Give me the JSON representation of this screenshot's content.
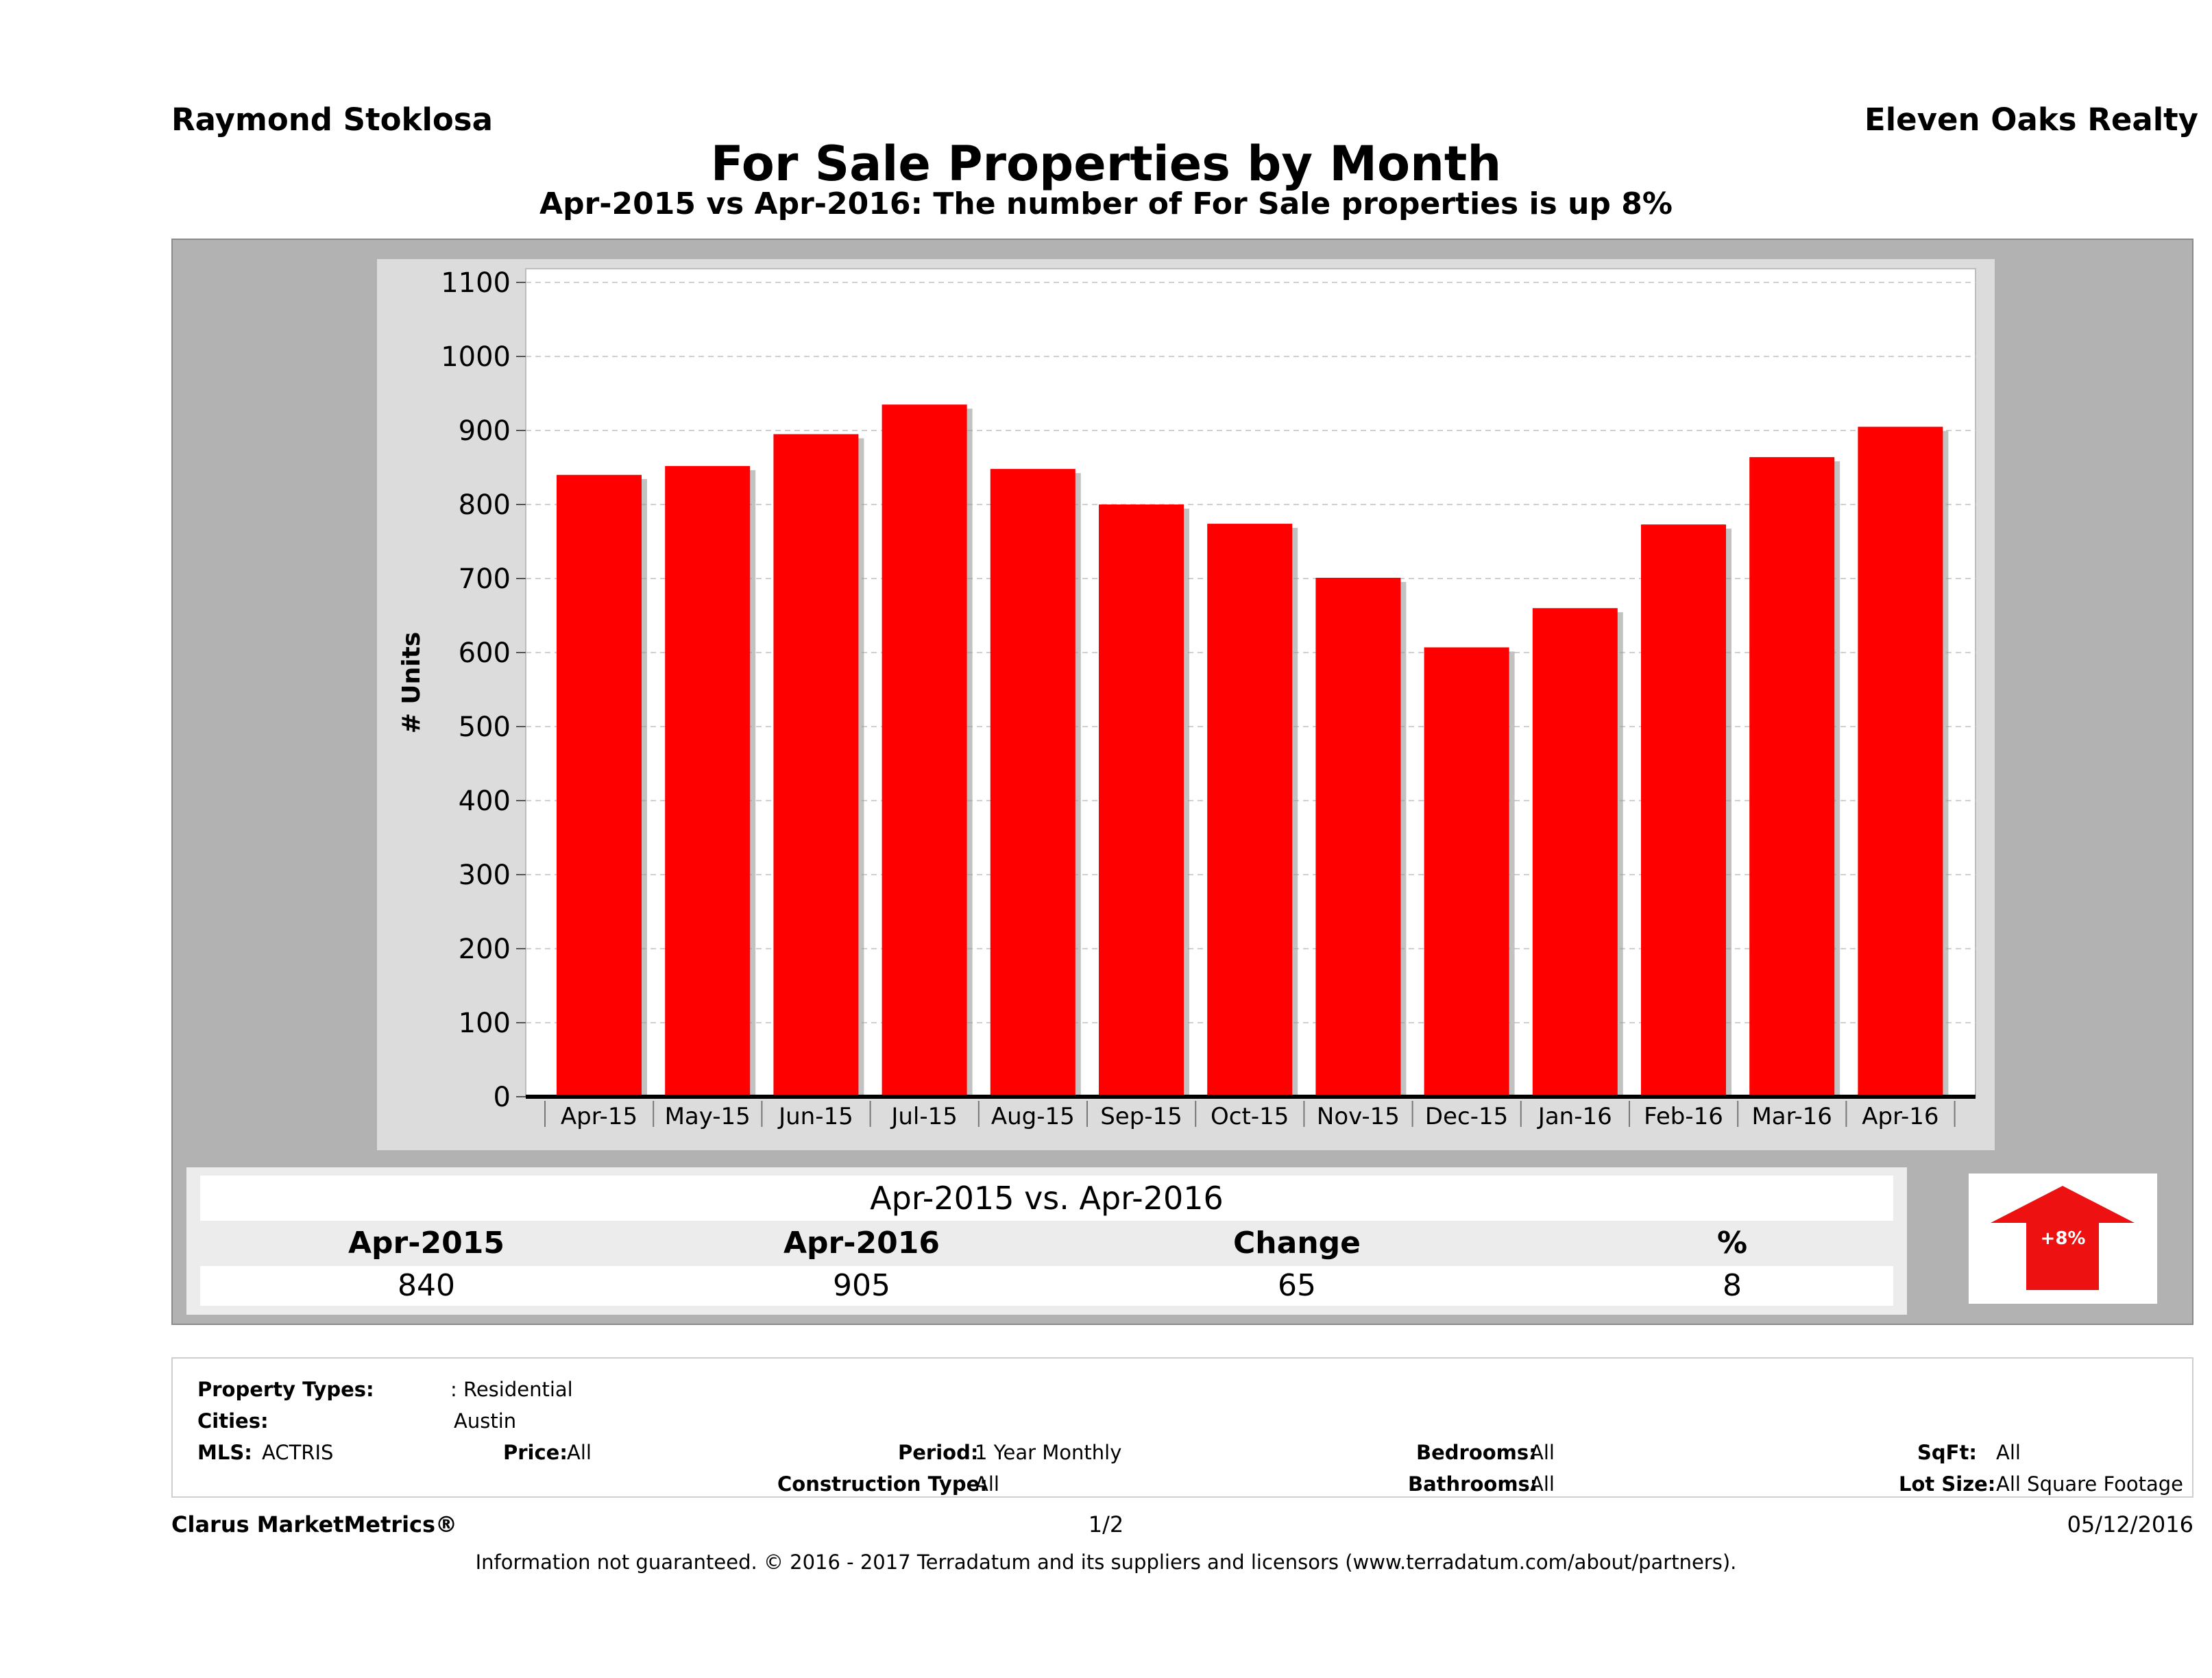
{
  "header": {
    "agent_name": "Raymond Stoklosa",
    "company": "Eleven Oaks Realty",
    "title": "For Sale Properties by Month",
    "subtitle": "Apr-2015 vs Apr-2016: The number of For Sale  properties is up 8%"
  },
  "chart_data": {
    "type": "bar",
    "categories": [
      "Apr-15",
      "May-15",
      "Jun-15",
      "Jul-15",
      "Aug-15",
      "Sep-15",
      "Oct-15",
      "Nov-15",
      "Dec-15",
      "Jan-16",
      "Feb-16",
      "Mar-16",
      "Apr-16"
    ],
    "values": [
      840,
      852,
      895,
      935,
      848,
      800,
      774,
      701,
      607,
      660,
      773,
      864,
      905
    ],
    "ylabel": "# Units",
    "ylim": [
      0,
      1100
    ],
    "yticks": [
      0,
      100,
      200,
      300,
      400,
      500,
      600,
      700,
      800,
      900,
      1000,
      1100
    ],
    "grid": true,
    "bar_color": "#ff0000"
  },
  "summary": {
    "title": "Apr-2015 vs. Apr-2016",
    "headers": [
      "Apr-2015",
      "Apr-2016",
      "Change",
      "%"
    ],
    "values": [
      "840",
      "905",
      "65",
      "8"
    ],
    "badge": "+8%",
    "badge_color": "#ee1111"
  },
  "filters": {
    "property_types_label": "Property Types:",
    "property_types_value": ": Residential",
    "cities_label": "Cities:",
    "cities_value": "Austin",
    "mls_label": "MLS:",
    "mls_value": "ACTRIS",
    "price_label": "Price:",
    "price_value": "All",
    "period_label": "Period:",
    "period_value": "1 Year Monthly",
    "construction_label": "Construction Type:",
    "construction_value": "All",
    "bedrooms_label": "Bedrooms:",
    "bedrooms_value": "All",
    "bathrooms_label": "Bathrooms:",
    "bathrooms_value": "All",
    "sqft_label": "SqFt:",
    "sqft_value": "All",
    "lot_label": "Lot Size:",
    "lot_value": "All Square Footage"
  },
  "footer": {
    "brand": "Clarus MarketMetrics®",
    "page": "1/2",
    "date": "05/12/2016",
    "disclaimer": "Information not guaranteed. © 2016 - 2017 Terradatum and its suppliers and licensors (www.terradatum.com/about/partners)."
  }
}
